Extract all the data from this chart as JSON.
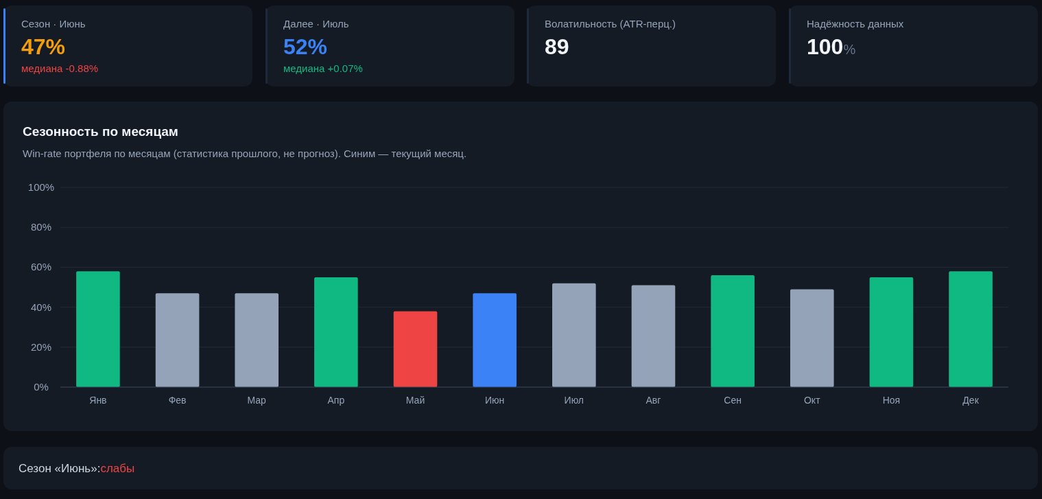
{
  "chart_data": [
    {
      "type": "other",
      "title": "Сезон · Июнь",
      "annotations": [
        "47%"
      ],
      "subtitle": "медиана -0.88%",
      "colors": [
        "#f59e0b",
        "#ef4444"
      ]
    },
    {
      "type": "other",
      "title": "Далее · Июль",
      "annotations": [
        "52%"
      ],
      "subtitle": "медиана +0.07%",
      "colors": [
        "#3b82f6",
        "#10b981"
      ]
    },
    {
      "type": "other",
      "title": "Волатильность (ATR-перц.)",
      "annotations": [
        "89"
      ],
      "colors": [
        "#f1f5f9"
      ]
    },
    {
      "type": "other",
      "title": "Надёжность данных",
      "annotations": [
        "100",
        "%"
      ],
      "colors": [
        "#f1f5f9",
        "#64748b"
      ]
    },
    {
      "type": "bar",
      "title": "Сезонность по месяцам",
      "subtitle": "Win-rate портфеля по месяцам (статистика прошлого, не прогноз). Синим — текущий месяц.",
      "categories": [
        "Янв",
        "Фев",
        "Мар",
        "Апр",
        "Май",
        "Июн",
        "Июл",
        "Авг",
        "Сен",
        "Окт",
        "Ноя",
        "Дек"
      ],
      "values": [
        58,
        47,
        47,
        55,
        38,
        47,
        52,
        51,
        56,
        49,
        55,
        58
      ],
      "colors": [
        "#10b981",
        "#94a3b8",
        "#94a3b8",
        "#10b981",
        "#ef4444",
        "#3b82f6",
        "#94a3b8",
        "#94a3b8",
        "#10b981",
        "#94a3b8",
        "#10b981",
        "#10b981"
      ],
      "ylim": [
        0,
        100
      ],
      "yticks": [
        {
          "value": 0,
          "label": "0%"
        },
        {
          "value": 20,
          "label": "20%"
        },
        {
          "value": 40,
          "label": "40%"
        },
        {
          "value": 60,
          "label": "60%"
        },
        {
          "value": 80,
          "label": "80%"
        },
        {
          "value": 100,
          "label": "100%"
        }
      ],
      "grid": true
    },
    {
      "type": "other",
      "annotations": [
        "Сезон «Июнь»:",
        "слабы"
      ],
      "colors": [
        "#cbd5e1",
        "#ef4444"
      ]
    }
  ]
}
